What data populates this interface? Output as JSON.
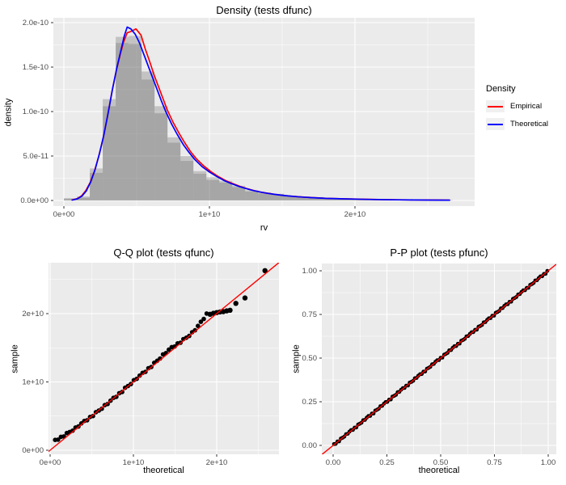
{
  "figure": {
    "background": "#FFFFFF"
  },
  "theme": {
    "panel_bg": "#EBEBEB",
    "grid_major_color": "#FFFFFF",
    "grid_minor_color": "#FFFFFF",
    "tick_mark_color": "#333333",
    "tick_text_color": "#4D4D4D",
    "title_color": "#000000",
    "empirical_color": "#FF0000",
    "theoretical_color": "#0000FF",
    "point_color": "#000000",
    "bar_fill": "#585858",
    "bar_alpha": 0.27,
    "legend_key_bg": "#F0F0F0"
  },
  "chart_data": [
    {
      "id": "density",
      "type": "area",
      "subtype": "histogram-with-density-lines",
      "title": "Density (tests dfunc)",
      "xlabel": "rv",
      "ylabel": "density",
      "x_unit": "values in 1e9 (axis shows 0e+00 .. 2e+10)",
      "y_unit": "values in 1e-11 (axis shows 0.0e+00 .. 2.0e-10)",
      "xlim": [
        -0.7,
        28.2
      ],
      "ylim": [
        -0.6,
        20.6
      ],
      "grid": true,
      "legend_position": "right",
      "x_ticks": {
        "major": [
          {
            "v": 0,
            "label": "0e+00"
          },
          {
            "v": 10,
            "label": "1e+10"
          },
          {
            "v": 20,
            "label": "2e+10"
          }
        ],
        "minor": [
          5,
          15,
          25
        ]
      },
      "y_ticks": {
        "major": [
          {
            "v": 0,
            "label": "0.0e+00"
          },
          {
            "v": 5,
            "label": "5.0e-11"
          },
          {
            "v": 10,
            "label": "1.0e-10"
          },
          {
            "v": 15,
            "label": "1.5e-10"
          },
          {
            "v": 20,
            "label": "2.0e-10"
          }
        ],
        "minor": [
          2.5,
          7.5,
          12.5,
          17.5
        ]
      },
      "histogram": {
        "bin_start": 0,
        "bin_width": 0.89,
        "series": [
          {
            "name": "histogram-layer-1",
            "heights": [
              0.25,
              0.3,
              3.6,
              11.4,
              17.7,
              18.5,
              13.6,
              9.8,
              7.1,
              4.45,
              3.3,
              2.6,
              2.0,
              1.5,
              1.15,
              0.9,
              0.7,
              0.55,
              0.45,
              0.35,
              0.28,
              0.22,
              0.18,
              0.14,
              0.11,
              0.09,
              0.07,
              0.055,
              0.045,
              0.035
            ]
          },
          {
            "name": "histogram-layer-2",
            "heights": [
              0.2,
              0.45,
              3.1,
              10.6,
              18.4,
              17.6,
              14.5,
              10.6,
              6.5,
              5.0,
              3.0,
              2.3,
              2.2,
              1.65,
              1.0,
              0.8,
              0.75,
              0.5,
              0.4,
              0.38,
              0.25,
              0.2,
              0.15,
              0.12,
              0.1,
              0.08,
              0.06,
              0.05,
              0.04,
              0.03
            ]
          }
        ]
      },
      "curves": [
        {
          "name": "Empirical",
          "color": "#FF0000",
          "points": [
            [
              0.55,
              0.05
            ],
            [
              0.9,
              0.2
            ],
            [
              1.2,
              0.5
            ],
            [
              1.5,
              1.1
            ],
            [
              1.8,
              2.0
            ],
            [
              2.1,
              3.3
            ],
            [
              2.4,
              5.0
            ],
            [
              2.7,
              7.0
            ],
            [
              3.0,
              9.5
            ],
            [
              3.3,
              12.2
            ],
            [
              3.6,
              14.6
            ],
            [
              3.9,
              16.6
            ],
            [
              4.1,
              17.8
            ],
            [
              4.35,
              18.85
            ],
            [
              4.6,
              19.0
            ],
            [
              4.95,
              19.3
            ],
            [
              5.3,
              18.6
            ],
            [
              5.6,
              17.0
            ],
            [
              5.9,
              15.6
            ],
            [
              6.2,
              14.1
            ],
            [
              6.5,
              12.8
            ],
            [
              6.8,
              11.5
            ],
            [
              7.1,
              10.2
            ],
            [
              7.5,
              8.8
            ],
            [
              7.9,
              7.6
            ],
            [
              8.3,
              6.5
            ],
            [
              8.7,
              5.5
            ],
            [
              9.1,
              4.7
            ],
            [
              9.6,
              3.9
            ],
            [
              10.1,
              3.25
            ],
            [
              10.6,
              2.7
            ],
            [
              11.1,
              2.25
            ],
            [
              11.6,
              1.9
            ],
            [
              12.1,
              1.58
            ],
            [
              12.6,
              1.32
            ],
            [
              13.1,
              1.1
            ],
            [
              13.6,
              0.92
            ],
            [
              14.1,
              0.78
            ],
            [
              14.6,
              0.66
            ],
            [
              15.1,
              0.56
            ],
            [
              15.6,
              0.48
            ],
            [
              16.1,
              0.42
            ],
            [
              17.0,
              0.33
            ],
            [
              18.0,
              0.25
            ],
            [
              19.0,
              0.2
            ],
            [
              20.0,
              0.16
            ],
            [
              21.0,
              0.125
            ],
            [
              22.0,
              0.095
            ],
            [
              23.0,
              0.075
            ],
            [
              24.0,
              0.06
            ],
            [
              25.0,
              0.05
            ],
            [
              26.5,
              0.04
            ]
          ]
        },
        {
          "name": "Theoretical",
          "color": "#0000FF",
          "points": [
            [
              0.6,
              0.05
            ],
            [
              0.95,
              0.2
            ],
            [
              1.25,
              0.5
            ],
            [
              1.55,
              1.1
            ],
            [
              1.85,
              2.1
            ],
            [
              2.15,
              3.5
            ],
            [
              2.45,
              5.3
            ],
            [
              2.75,
              7.4
            ],
            [
              3.05,
              9.9
            ],
            [
              3.35,
              12.6
            ],
            [
              3.65,
              15.0
            ],
            [
              3.95,
              17.1
            ],
            [
              4.15,
              18.5
            ],
            [
              4.35,
              19.5
            ],
            [
              4.6,
              19.3
            ],
            [
              4.9,
              18.7
            ],
            [
              5.2,
              17.7
            ],
            [
              5.5,
              16.4
            ],
            [
              5.8,
              15.1
            ],
            [
              6.1,
              13.8
            ],
            [
              6.4,
              12.5
            ],
            [
              6.7,
              11.2
            ],
            [
              7.0,
              10.0
            ],
            [
              7.4,
              8.6
            ],
            [
              7.8,
              7.4
            ],
            [
              8.2,
              6.3
            ],
            [
              8.6,
              5.4
            ],
            [
              9.0,
              4.6
            ],
            [
              9.5,
              3.8
            ],
            [
              10.0,
              3.2
            ],
            [
              10.5,
              2.7
            ],
            [
              11.0,
              2.25
            ],
            [
              11.5,
              1.9
            ],
            [
              12.0,
              1.6
            ],
            [
              12.5,
              1.35
            ],
            [
              13.0,
              1.12
            ],
            [
              13.5,
              0.95
            ],
            [
              14.0,
              0.8
            ],
            [
              14.5,
              0.68
            ],
            [
              15.0,
              0.58
            ],
            [
              15.5,
              0.5
            ],
            [
              16.0,
              0.43
            ],
            [
              17.0,
              0.32
            ],
            [
              18.0,
              0.24
            ],
            [
              19.0,
              0.19
            ],
            [
              20.0,
              0.15
            ],
            [
              21.0,
              0.12
            ],
            [
              22.0,
              0.09
            ],
            [
              23.0,
              0.07
            ],
            [
              24.0,
              0.058
            ],
            [
              25.0,
              0.048
            ],
            [
              26.5,
              0.04
            ]
          ]
        }
      ],
      "legend": {
        "title": "Density",
        "entries": [
          {
            "label": "Empirical",
            "color": "#FF0000"
          },
          {
            "label": "Theoretical",
            "color": "#0000FF"
          }
        ]
      }
    },
    {
      "id": "qq",
      "type": "scatter",
      "title": "Q-Q plot (tests qfunc)",
      "xlabel": "theoretical",
      "ylabel": "sample",
      "unit": "values in 1e9 (axes show 0e+00 .. 2e+10)",
      "xlim": [
        -0.2,
        27.5
      ],
      "ylim": [
        -0.6,
        27.5
      ],
      "grid": true,
      "x_ticks": {
        "major": [
          {
            "v": 0,
            "label": "0e+00"
          },
          {
            "v": 10,
            "label": "1e+10"
          },
          {
            "v": 20,
            "label": "2e+10"
          }
        ],
        "minor": [
          5,
          15,
          25
        ]
      },
      "y_ticks": {
        "major": [
          {
            "v": 0,
            "label": "0e+00"
          },
          {
            "v": 10,
            "label": "1e+10"
          },
          {
            "v": 20,
            "label": "2e+10"
          }
        ],
        "minor": [
          5,
          15,
          25
        ]
      },
      "band": {
        "comment": "dense run of sample-vs-theoretical quantile points along y=x",
        "t_start": 0.6,
        "t_end": 18.8,
        "step": 0.35,
        "deviation_profile": [
          [
            0.6,
            0.8
          ],
          [
            1.5,
            0.55
          ],
          [
            3,
            0.15
          ],
          [
            5,
            0.0
          ],
          [
            7,
            -0.1
          ],
          [
            9,
            0.05
          ],
          [
            11,
            0.1
          ],
          [
            12.5,
            0.2
          ],
          [
            13.5,
            0.35
          ],
          [
            14.5,
            0.4
          ],
          [
            15.5,
            0.25
          ],
          [
            16.5,
            0.1
          ],
          [
            17.2,
            0.1
          ],
          [
            18.0,
            0.5
          ],
          [
            18.8,
            1.15
          ]
        ],
        "jitter": [
          0.12,
          -0.1,
          0.06,
          -0.14,
          0.1,
          0,
          -0.07,
          0.13,
          -0.04,
          0.08
        ],
        "point_radius": 2.8
      },
      "plateau_points": [
        [
          19.2,
          19.9
        ],
        [
          19.6,
          20.05
        ],
        [
          20.0,
          20.15
        ],
        [
          20.4,
          20.25
        ],
        [
          20.8,
          20.3
        ],
        [
          21.2,
          20.4
        ],
        [
          21.6,
          20.5
        ]
      ],
      "outlier_points": [
        [
          22.3,
          21.5
        ],
        [
          23.4,
          22.3
        ],
        [
          25.8,
          26.3
        ]
      ],
      "outlier_radius": 3.2,
      "ref_line": {
        "slope": 1,
        "intercept": 0,
        "color": "#FF0000"
      }
    },
    {
      "id": "pp",
      "type": "scatter",
      "title": "P-P plot (tests pfunc)",
      "xlabel": "theoretical",
      "ylabel": "sample",
      "unit": "probabilities 0..1",
      "xlim": [
        -0.045,
        1.04
      ],
      "ylim": [
        -0.05,
        1.05
      ],
      "grid": true,
      "x_ticks": {
        "major": [
          {
            "v": 0,
            "label": "0.00"
          },
          {
            "v": 0.25,
            "label": "0.25"
          },
          {
            "v": 0.5,
            "label": "0.50"
          },
          {
            "v": 0.75,
            "label": "0.75"
          },
          {
            "v": 1,
            "label": "1.00"
          }
        ],
        "minor": [
          0.125,
          0.375,
          0.625,
          0.875
        ]
      },
      "y_ticks": {
        "major": [
          {
            "v": 0,
            "label": "0.00"
          },
          {
            "v": 0.25,
            "label": "0.25"
          },
          {
            "v": 0.5,
            "label": "0.50"
          },
          {
            "v": 0.75,
            "label": "0.75"
          },
          {
            "v": 1,
            "label": "1.00"
          }
        ],
        "minor": [
          0.125,
          0.375,
          0.625,
          0.875
        ]
      },
      "band": {
        "comment": "dense run of empirical-vs-theoretical probability points along y=x",
        "t_start": 0.004,
        "t_end": 0.996,
        "step": 0.008,
        "deviation_profile": [
          [
            0,
            0
          ],
          [
            1,
            0
          ]
        ],
        "jitter": [
          0.004,
          -0.003,
          0.002,
          -0.005,
          0.0035,
          0,
          -0.002,
          0.0045,
          -0.0015,
          0.003
        ],
        "point_radius": 2.4
      },
      "plateau_points": [],
      "outlier_points": [],
      "outlier_radius": 2.4,
      "ref_line": {
        "slope": 1,
        "intercept": 0,
        "color": "#FF0000"
      }
    }
  ]
}
